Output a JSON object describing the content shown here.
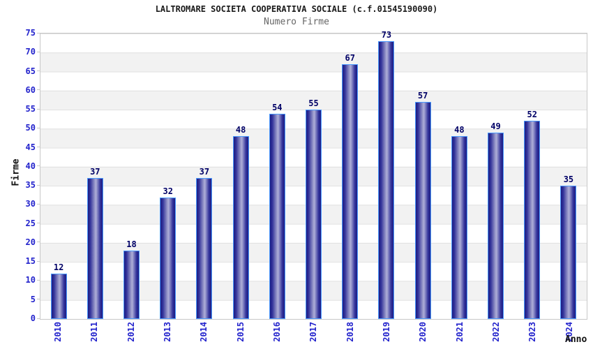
{
  "header": {
    "title": "LALTROMARE SOCIETA COOPERATIVA SOCIALE (c.f.01545190090)",
    "subtitle": "Numero Firme"
  },
  "chart_data": {
    "type": "bar",
    "title": "LALTROMARE SOCIETA COOPERATIVA SOCIALE (c.f.01545190090)",
    "subtitle": "Numero Firme",
    "xlabel": "Anno",
    "ylabel": "Firme",
    "categories": [
      "2010",
      "2011",
      "2012",
      "2013",
      "2014",
      "2015",
      "2016",
      "2017",
      "2018",
      "2019",
      "2020",
      "2021",
      "2022",
      "2023",
      "2024"
    ],
    "values": [
      12,
      37,
      18,
      32,
      37,
      48,
      54,
      55,
      67,
      73,
      57,
      48,
      49,
      52,
      35
    ],
    "ylim": [
      0,
      75
    ],
    "yticks": [
      0,
      5,
      10,
      15,
      20,
      25,
      30,
      35,
      40,
      45,
      50,
      55,
      60,
      65,
      70,
      75
    ],
    "grid": "horizontal alternating bands with gridlines every 5 units",
    "legend_position": "none",
    "colors": {
      "bar_dark": "#1d1d82",
      "bar_highlight": "#aeaed8",
      "bar_border": "#4a9aff",
      "tick_label": "#2222cc",
      "value_label": "#000066",
      "band_gray": "#f2f2f2",
      "grid_line": "#e0e0e0",
      "plot_border": "#c8c8c8",
      "title_color": "#1a1a1a",
      "subtitle_color": "#666666",
      "axis_title_color": "#111111"
    }
  }
}
